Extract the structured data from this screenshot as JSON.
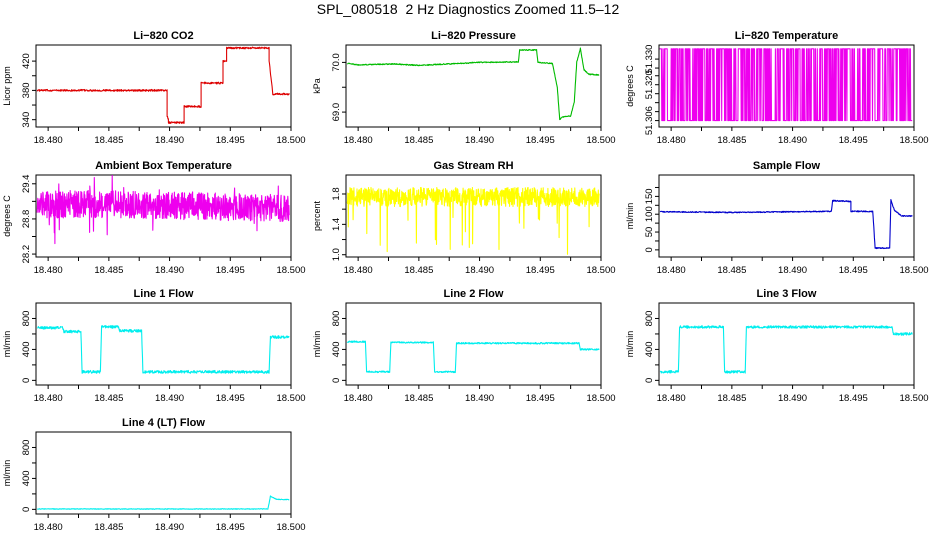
{
  "title": "SPL_080518  2 Hz Diagnostics Zoomed 11.5–12",
  "chart_data": [
    {
      "type": "line",
      "title": "Li−820 CO2",
      "ylabel": "Licor ppm",
      "color": "#dd0000",
      "xlim": [
        18.479,
        18.5
      ],
      "ylim": [
        330,
        442
      ],
      "xticks": [
        "18.480",
        "18.485",
        "18.490",
        "18.495",
        "18.500"
      ],
      "yticks": [
        "340",
        "380",
        "420"
      ],
      "yticks_minor": [
        360,
        400
      ],
      "noise": 1.2,
      "x": [
        18.4791,
        18.4898,
        18.4898,
        18.4899,
        18.4899,
        18.4912,
        18.4912,
        18.4926,
        18.4926,
        18.4944,
        18.4944,
        18.4947,
        18.4947,
        18.4982,
        18.4982,
        18.4985,
        18.4985,
        18.49985
      ],
      "y": [
        380,
        380,
        345,
        340,
        336,
        336,
        358,
        358,
        390,
        390,
        420,
        420,
        438,
        438,
        420,
        375,
        375,
        375
      ]
    },
    {
      "type": "line",
      "title": "Li−820 Pressure",
      "ylabel": "kPa",
      "color": "#00bb00",
      "xlim": [
        18.479,
        18.5
      ],
      "ylim": [
        68.7,
        70.35
      ],
      "xticks": [
        "18.480",
        "18.485",
        "18.490",
        "18.495",
        "18.500"
      ],
      "yticks": [
        "69.0",
        "70.0"
      ],
      "yticks_minor": [
        69.5
      ],
      "noise": 0.01,
      "x": [
        18.4791,
        18.48,
        18.483,
        18.485,
        18.49,
        18.4932,
        18.4933,
        18.4947,
        18.4948,
        18.496,
        18.4964,
        18.4966,
        18.4968,
        18.4975,
        18.4978,
        18.498,
        18.4983,
        18.4986,
        18.499,
        18.49985
      ],
      "y": [
        69.98,
        69.95,
        69.97,
        69.94,
        70.0,
        70.01,
        70.25,
        70.25,
        70.0,
        69.98,
        69.5,
        68.85,
        68.9,
        68.92,
        69.2,
        70.0,
        70.28,
        69.85,
        69.76,
        69.75
      ]
    },
    {
      "type": "line",
      "title": "Li−820 Temperature",
      "ylabel": "degrees C",
      "color": "#ee00ee",
      "xlim": [
        18.479,
        18.5
      ],
      "ylim": [
        51.3035,
        51.3355
      ],
      "xticks": [
        "18.480",
        "18.485",
        "18.490",
        "18.495",
        "18.500"
      ],
      "yticks": [
        "51.306",
        "51.320",
        "51.330"
      ],
      "yticks_values": [
        51.306,
        51.32,
        51.33
      ],
      "yticks_minor": [
        51.3095,
        51.313,
        51.3165,
        51.3235,
        51.3265
      ],
      "style": "switching",
      "low": 51.306,
      "high": 51.334,
      "x": [
        18.4791,
        18.49985
      ],
      "y": [
        51.306,
        51.334
      ]
    },
    {
      "type": "line",
      "title": "Ambient Box Temperature",
      "ylabel": "degrees C",
      "color": "#ee00ee",
      "xlim": [
        18.479,
        18.5
      ],
      "ylim": [
        28.15,
        29.55
      ],
      "xticks": [
        "18.480",
        "18.485",
        "18.490",
        "18.495",
        "18.500"
      ],
      "yticks": [
        "28.2",
        "28.8",
        "29.4"
      ],
      "yticks_values": [
        28.2,
        28.8,
        29.4
      ],
      "yticks_minor": [
        28.5,
        29.1
      ],
      "style": "noise",
      "noise": 0.13,
      "spikes": 0.6,
      "x": [
        18.4791,
        18.485,
        18.49985
      ],
      "y": [
        29.05,
        29.05,
        28.98
      ]
    },
    {
      "type": "line",
      "title": "Gas Stream RH",
      "ylabel": "percent",
      "color": "#ffff00",
      "xlim": [
        18.479,
        18.5
      ],
      "ylim": [
        0.97,
        2.05
      ],
      "xticks": [
        "18.480",
        "18.485",
        "18.490",
        "18.495",
        "18.500"
      ],
      "yticks": [
        "1.0",
        "1.4",
        "1.8"
      ],
      "yticks_minor": [
        1.2,
        1.6
      ],
      "style": "noise",
      "noise": 0.07,
      "spikes": 0.75,
      "spike_dir": -1,
      "x": [
        18.4791,
        18.49985
      ],
      "y": [
        1.76,
        1.76
      ]
    },
    {
      "type": "line",
      "title": "Sample Flow",
      "ylabel": "ml/min",
      "color": "#0000cc",
      "xlim": [
        18.479,
        18.5
      ],
      "ylim": [
        -20,
        210
      ],
      "xticks": [
        "18.480",
        "18.485",
        "18.490",
        "18.495",
        "18.500"
      ],
      "yticks": [
        "0",
        "50",
        "100",
        "150"
      ],
      "yticks_minor": [
        25,
        75,
        125,
        175
      ],
      "noise": 1.5,
      "x": [
        18.4791,
        18.485,
        18.49,
        18.4932,
        18.4933,
        18.4948,
        18.4948,
        18.4966,
        18.4968,
        18.498,
        18.4981,
        18.4984,
        18.499,
        18.49985
      ],
      "y": [
        107,
        105,
        107,
        108,
        138,
        136,
        108,
        108,
        5,
        5,
        140,
        110,
        95,
        95
      ]
    },
    {
      "type": "line",
      "title": "Line 1 Flow",
      "ylabel": "ml/min",
      "color": "#00eeee",
      "xlim": [
        18.479,
        18.5
      ],
      "ylim": [
        -60,
        1000
      ],
      "xticks": [
        "18.480",
        "18.485",
        "18.490",
        "18.495",
        "18.500"
      ],
      "yticks": [
        "0",
        "400",
        "800"
      ],
      "yticks_minor": [
        200,
        600
      ],
      "noise": 18,
      "x": [
        18.4791,
        18.4812,
        18.4813,
        18.4827,
        18.4828,
        18.4843,
        18.4844,
        18.4858,
        18.4859,
        18.4877,
        18.4878,
        18.4982,
        18.4983,
        18.49985
      ],
      "y": [
        680,
        680,
        630,
        630,
        110,
        110,
        690,
        690,
        640,
        640,
        110,
        110,
        560,
        560
      ]
    },
    {
      "type": "line",
      "title": "Line 2 Flow",
      "ylabel": "ml/min",
      "color": "#00eeee",
      "xlim": [
        18.479,
        18.5
      ],
      "ylim": [
        -60,
        1000
      ],
      "xticks": [
        "18.480",
        "18.485",
        "18.490",
        "18.495",
        "18.500"
      ],
      "yticks": [
        "0",
        "400",
        "800"
      ],
      "yticks_minor": [
        200,
        600
      ],
      "noise": 10,
      "x": [
        18.4791,
        18.4806,
        18.4807,
        18.4826,
        18.4827,
        18.4862,
        18.4863,
        18.488,
        18.4881,
        18.4982,
        18.4983,
        18.49985
      ],
      "y": [
        500,
        500,
        110,
        110,
        490,
        490,
        110,
        110,
        480,
        480,
        400,
        400
      ]
    },
    {
      "type": "line",
      "title": "Line 3 Flow",
      "ylabel": "ml/min",
      "color": "#00eeee",
      "xlim": [
        18.479,
        18.5
      ],
      "ylim": [
        -60,
        1000
      ],
      "xticks": [
        "18.480",
        "18.485",
        "18.490",
        "18.495",
        "18.500"
      ],
      "yticks": [
        "0",
        "400",
        "800"
      ],
      "yticks_minor": [
        200,
        600
      ],
      "noise": 16,
      "x": [
        18.4791,
        18.4806,
        18.4807,
        18.4843,
        18.4844,
        18.4861,
        18.4862,
        18.4982,
        18.4983,
        18.49985
      ],
      "y": [
        110,
        110,
        690,
        690,
        110,
        110,
        690,
        690,
        600,
        600
      ]
    },
    {
      "type": "line",
      "title": "Line 4 (LT) Flow",
      "ylabel": "ml/min",
      "color": "#00eeee",
      "xlim": [
        18.479,
        18.5
      ],
      "ylim": [
        -60,
        1000
      ],
      "xticks": [
        "18.480",
        "18.485",
        "18.490",
        "18.495",
        "18.500"
      ],
      "yticks": [
        "0",
        "400",
        "800"
      ],
      "yticks_minor": [
        200,
        600
      ],
      "noise": 4,
      "x": [
        18.4791,
        18.4981,
        18.4982,
        18.4983,
        18.4988,
        18.49985
      ],
      "y": [
        5,
        5,
        80,
        170,
        130,
        125
      ]
    }
  ]
}
